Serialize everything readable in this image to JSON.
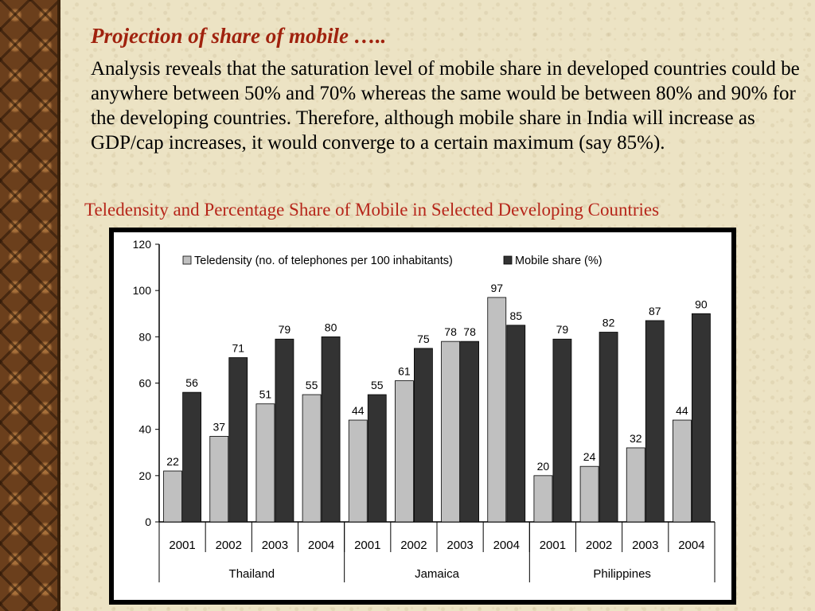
{
  "slide": {
    "title": "Projection of share of mobile …..",
    "body": "Analysis reveals that the saturation level of mobile share in developed countries could be anywhere between 50% and 70% whereas the same would be between 80% and 90% for the developing countries. Therefore, although mobile share in India will increase as GDP/cap increases, it would converge to a certain maximum (say 85%).",
    "chart_caption": "Teledensity and Percentage Share of Mobile in Selected Developing Countries"
  },
  "chart_data": {
    "type": "bar",
    "title": "",
    "xlabel": "",
    "ylabel": "",
    "ylim": [
      0,
      120
    ],
    "yticks": [
      0,
      20,
      40,
      60,
      80,
      100,
      120
    ],
    "grid": false,
    "legend_position": "top",
    "groups": [
      {
        "name": "Thailand",
        "years": [
          "2001",
          "2002",
          "2003",
          "2004"
        ]
      },
      {
        "name": "Jamaica",
        "years": [
          "2001",
          "2002",
          "2003",
          "2004"
        ]
      },
      {
        "name": "Philippines",
        "years": [
          "2001",
          "2002",
          "2003",
          "2004"
        ]
      }
    ],
    "categories": [
      "2001",
      "2002",
      "2003",
      "2004",
      "2001",
      "2002",
      "2003",
      "2004",
      "2001",
      "2002",
      "2003",
      "2004"
    ],
    "series": [
      {
        "name": "Teledensity (no. of telephones per 100 inhabitants)",
        "color": "#c0c0c0",
        "values": [
          22,
          37,
          51,
          55,
          44,
          61,
          78,
          97,
          20,
          24,
          32,
          44
        ]
      },
      {
        "name": "Mobile share (%)",
        "color": "#333333",
        "values": [
          56,
          71,
          79,
          80,
          55,
          75,
          78,
          85,
          79,
          82,
          87,
          90
        ]
      }
    ]
  }
}
